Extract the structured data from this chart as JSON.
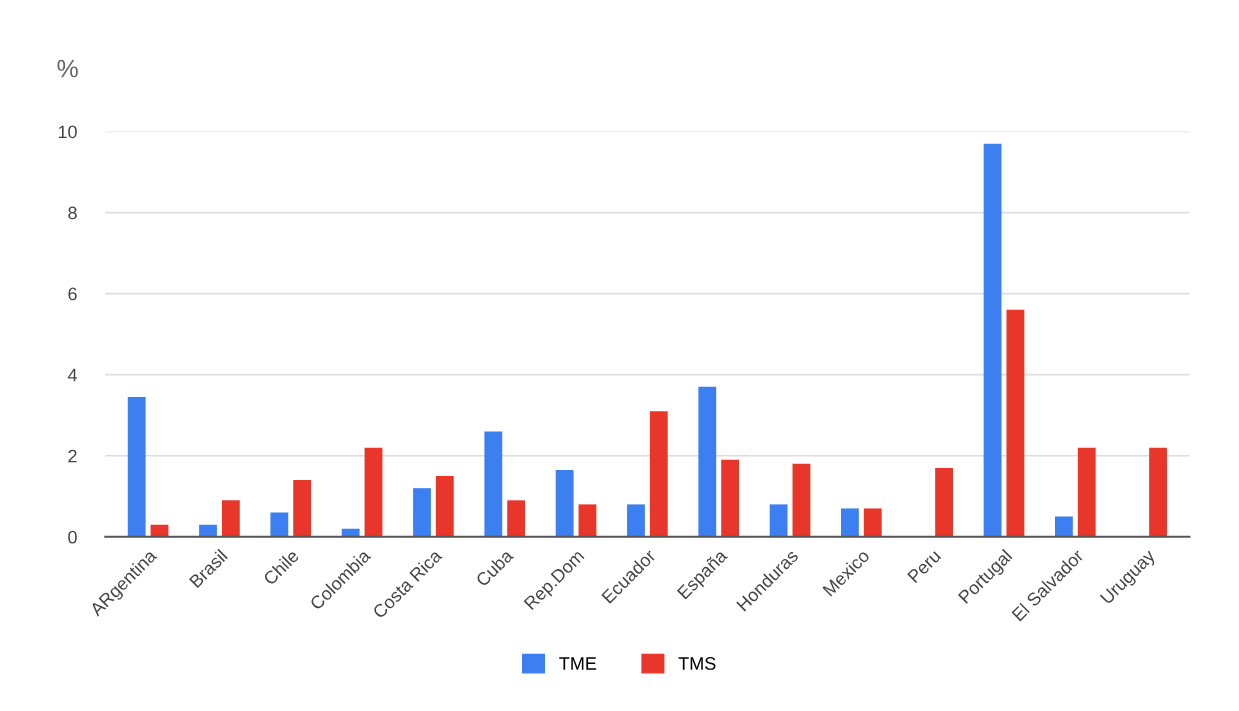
{
  "chart_data": {
    "type": "bar",
    "ylabel": "%",
    "categories": [
      "ARgentina",
      "Brasil",
      "Chile",
      "Colombia",
      "Costa Rica",
      "Cuba",
      "Rep.Dom",
      "Ecuador",
      "España",
      "Honduras",
      "Mexico",
      "Peru",
      "Portugal",
      "El Salvador",
      "Uruguay"
    ],
    "series": [
      {
        "name": "TME",
        "color": "#3b7ff0",
        "values": [
          3.45,
          0.3,
          0.6,
          0.2,
          1.2,
          2.6,
          1.65,
          0.8,
          3.7,
          0.8,
          0.7,
          0,
          9.7,
          0.5,
          0
        ]
      },
      {
        "name": "TMS",
        "color": "#e8372a",
        "values": [
          0.3,
          0.9,
          1.4,
          2.2,
          1.5,
          0.9,
          0.8,
          3.1,
          1.9,
          1.8,
          0.7,
          1.7,
          5.6,
          2.2,
          2.2
        ]
      }
    ],
    "ylim": [
      0,
      10
    ],
    "yticks": [
      0,
      2,
      4,
      6,
      8,
      10
    ],
    "grid": "y",
    "legend": "bottom"
  }
}
